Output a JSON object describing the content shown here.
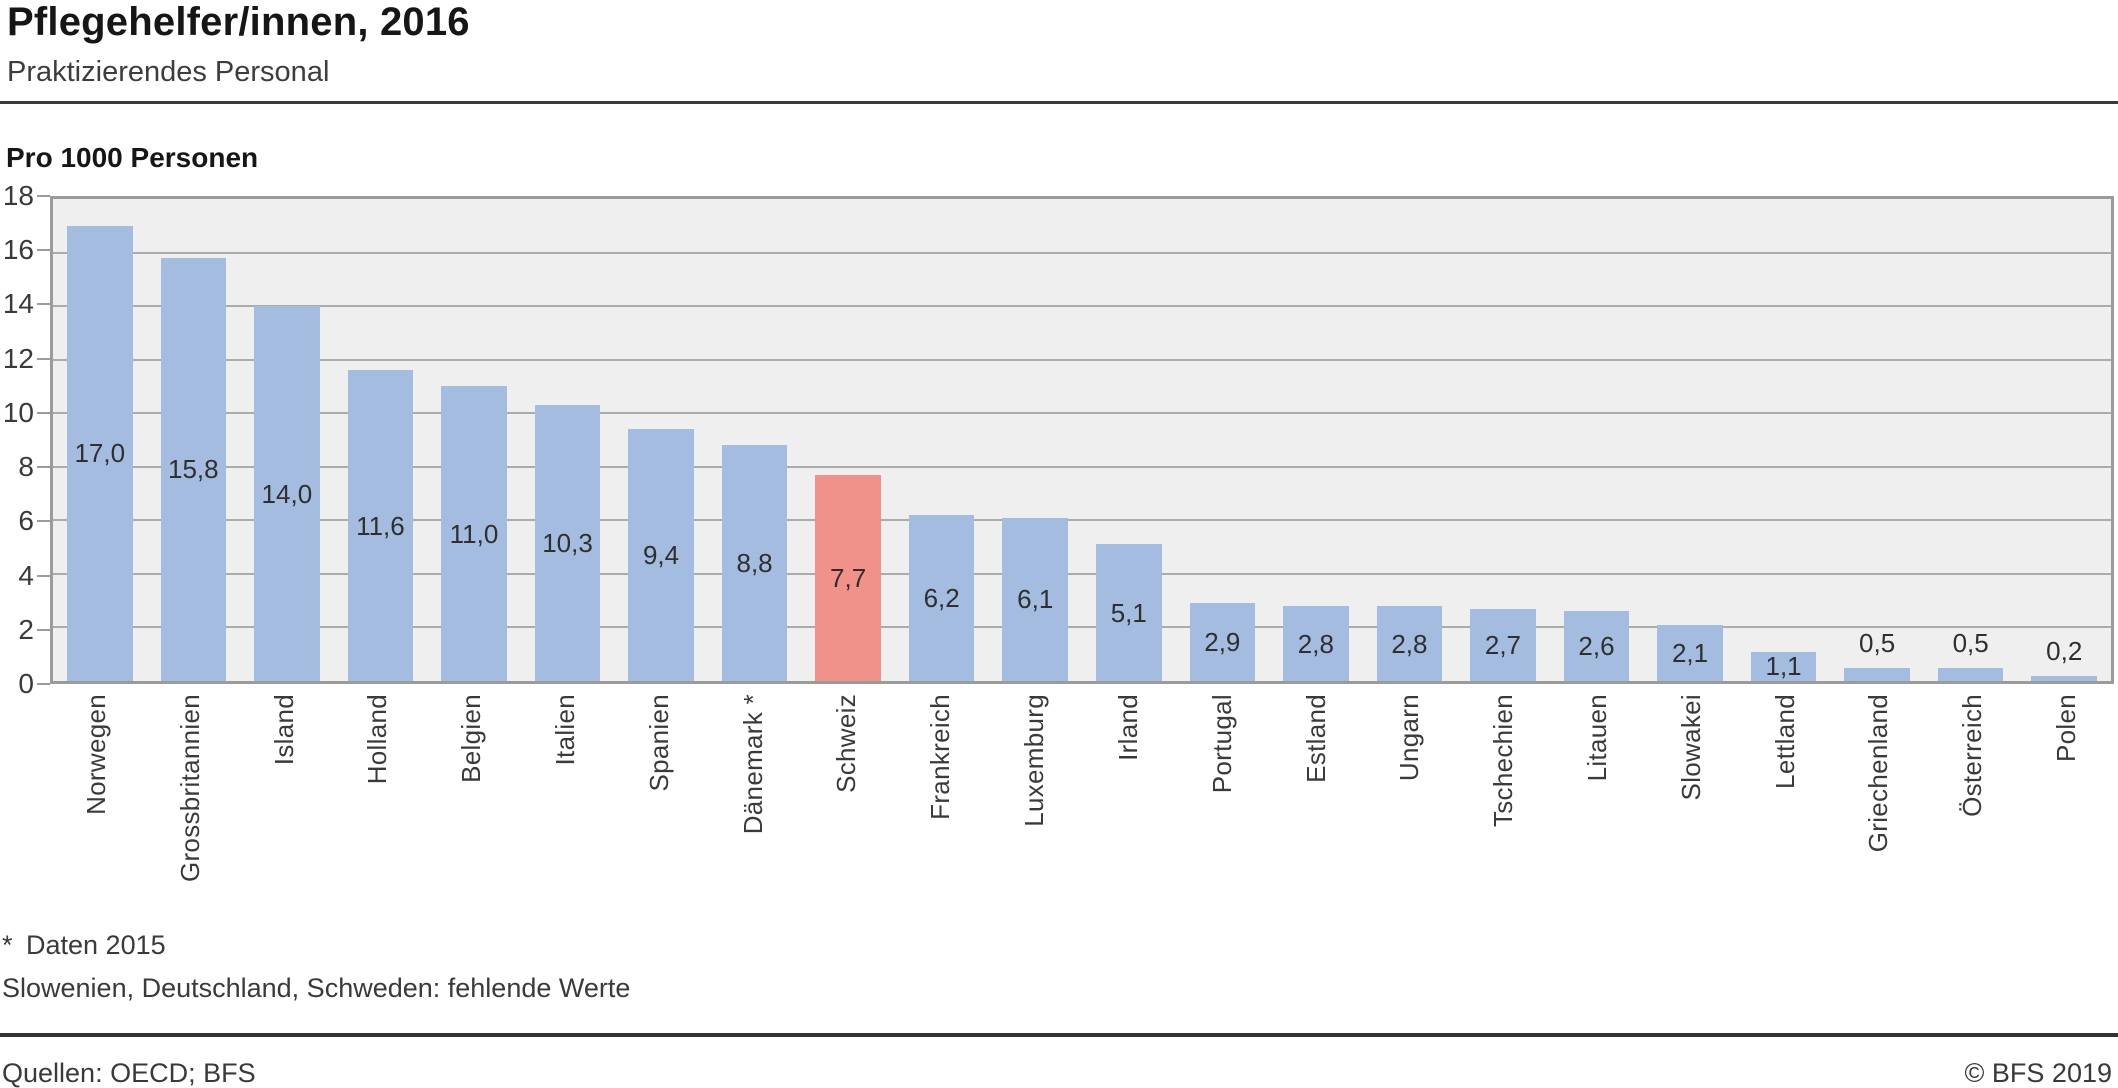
{
  "header": {
    "title": "Pflegehelfer/innen, 2016",
    "subtitle": "Praktizierendes Personal"
  },
  "chart_data": {
    "type": "bar",
    "title": "Pflegehelfer/innen, 2016",
    "subtitle": "Praktizierendes Personal",
    "ylabel": "Pro 1000 Personen",
    "xlabel": "",
    "categories": [
      "Norwegen",
      "Grossbritannien",
      "Island",
      "Holland",
      "Belgien",
      "Italien",
      "Spanien",
      "Dänemark *",
      "Schweiz",
      "Frankreich",
      "Luxemburg",
      "Irland",
      "Portugal",
      "Estland",
      "Ungarn",
      "Tschechien",
      "Litauen",
      "Slowakei",
      "Lettland",
      "Griechenland",
      "Österreich",
      "Polen"
    ],
    "values": [
      17.0,
      15.8,
      14.0,
      11.6,
      11.0,
      10.3,
      9.4,
      8.8,
      7.7,
      6.2,
      6.1,
      5.1,
      2.9,
      2.8,
      2.8,
      2.7,
      2.6,
      2.1,
      1.1,
      0.5,
      0.5,
      0.2
    ],
    "value_labels": [
      "17,0",
      "15,8",
      "14,0",
      "11,6",
      "11,0",
      "10,3",
      "9,4",
      "8,8",
      "7,7",
      "6,2",
      "6,1",
      "5,1",
      "2,9",
      "2,8",
      "2,8",
      "2,7",
      "2,6",
      "2,1",
      "1,1",
      "0,5",
      "0,5",
      "0,2"
    ],
    "highlight_category": "Schweiz",
    "highlight_index": 8,
    "ylim": [
      0,
      18
    ],
    "ytick_step": 2,
    "grid": true,
    "legend": "none",
    "colors": {
      "bar": "#a3bcdf",
      "highlight": "#f0918a",
      "plot_bg": "#efefef",
      "grid": "#ababab",
      "frame": "#9b9b9b"
    }
  },
  "footnotes": [
    {
      "marker": "*",
      "text": "Daten 2015"
    },
    {
      "marker": "",
      "text": "Slowenien, Deutschland, Schweden: fehlende Werte"
    }
  ],
  "footer": {
    "source": "Quellen: OECD; BFS",
    "copyright": "© BFS 2019"
  }
}
